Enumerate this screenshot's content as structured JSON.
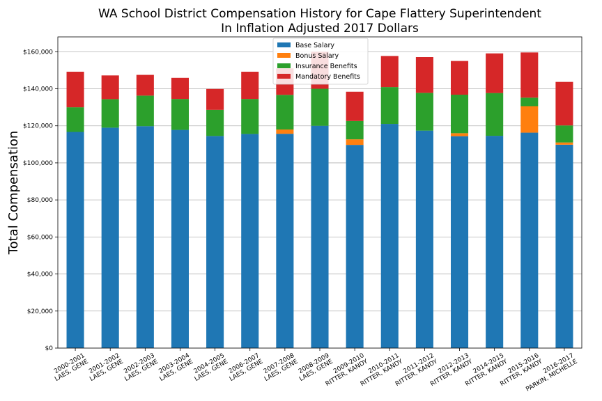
{
  "chart_data": {
    "type": "bar",
    "stacked": true,
    "title": "WA School District Compensation History for Cape Flattery Superintendent",
    "subtitle": "In Inflation Adjusted 2017 Dollars",
    "xlabel": "",
    "ylabel": "Total Compensation",
    "ylim": [
      0,
      168000
    ],
    "yticks": [
      0,
      20000,
      40000,
      60000,
      80000,
      100000,
      120000,
      140000,
      160000
    ],
    "ytick_labels": [
      "$0",
      "$20,000",
      "$40,000",
      "$60,000",
      "$80,000",
      "$100,000",
      "$120,000",
      "$140,000",
      "$160,000"
    ],
    "grid": true,
    "legend_position": "top-center",
    "categories": [
      [
        "2000-2001",
        "LAES, GENE"
      ],
      [
        "2001-2002",
        "LAES, GENE"
      ],
      [
        "2002-2003",
        "LAES, GENE"
      ],
      [
        "2003-2004",
        "LAES, GENE"
      ],
      [
        "2004-2005",
        "LAES, GENE"
      ],
      [
        "2006-2007",
        "LAES, GENE"
      ],
      [
        "2007-2008",
        "LAES, GENE"
      ],
      [
        "2008-2009",
        "LAES, GENE"
      ],
      [
        "2009-2010",
        "RITTER, KANDY"
      ],
      [
        "2010-2011",
        "RITTER, KANDY"
      ],
      [
        "2011-2012",
        "RITTER, KANDY"
      ],
      [
        "2012-2013",
        "RITTER, KANDY"
      ],
      [
        "2014-2015",
        "RITTER, KANDY"
      ],
      [
        "2015-2016",
        "RITTER, KANDY"
      ],
      [
        "2016-2017",
        "PARKIN, MICHELLE"
      ]
    ],
    "series": [
      {
        "name": "Base Salary",
        "color": "#1f77b4",
        "values": [
          116700,
          119000,
          119800,
          117800,
          114500,
          115600,
          115700,
          120000,
          109700,
          121000,
          117400,
          114400,
          114600,
          116300,
          109800
        ]
      },
      {
        "name": "Bonus Salary",
        "color": "#ff7f0e",
        "values": [
          0,
          0,
          0,
          0,
          0,
          0,
          2300,
          0,
          3000,
          0,
          0,
          1600,
          0,
          14300,
          1200
        ]
      },
      {
        "name": "Insurance Benefits",
        "color": "#2ca02c",
        "values": [
          13300,
          15400,
          16500,
          16700,
          14100,
          18900,
          18700,
          20000,
          9900,
          19900,
          20400,
          20800,
          23100,
          4600,
          9200
        ]
      },
      {
        "name": "Mandatory Benefits",
        "color": "#d62728",
        "values": [
          19200,
          12800,
          11200,
          11400,
          11300,
          14700,
          14300,
          20000,
          15800,
          16800,
          19300,
          18200,
          21400,
          24400,
          23500
        ]
      }
    ]
  }
}
